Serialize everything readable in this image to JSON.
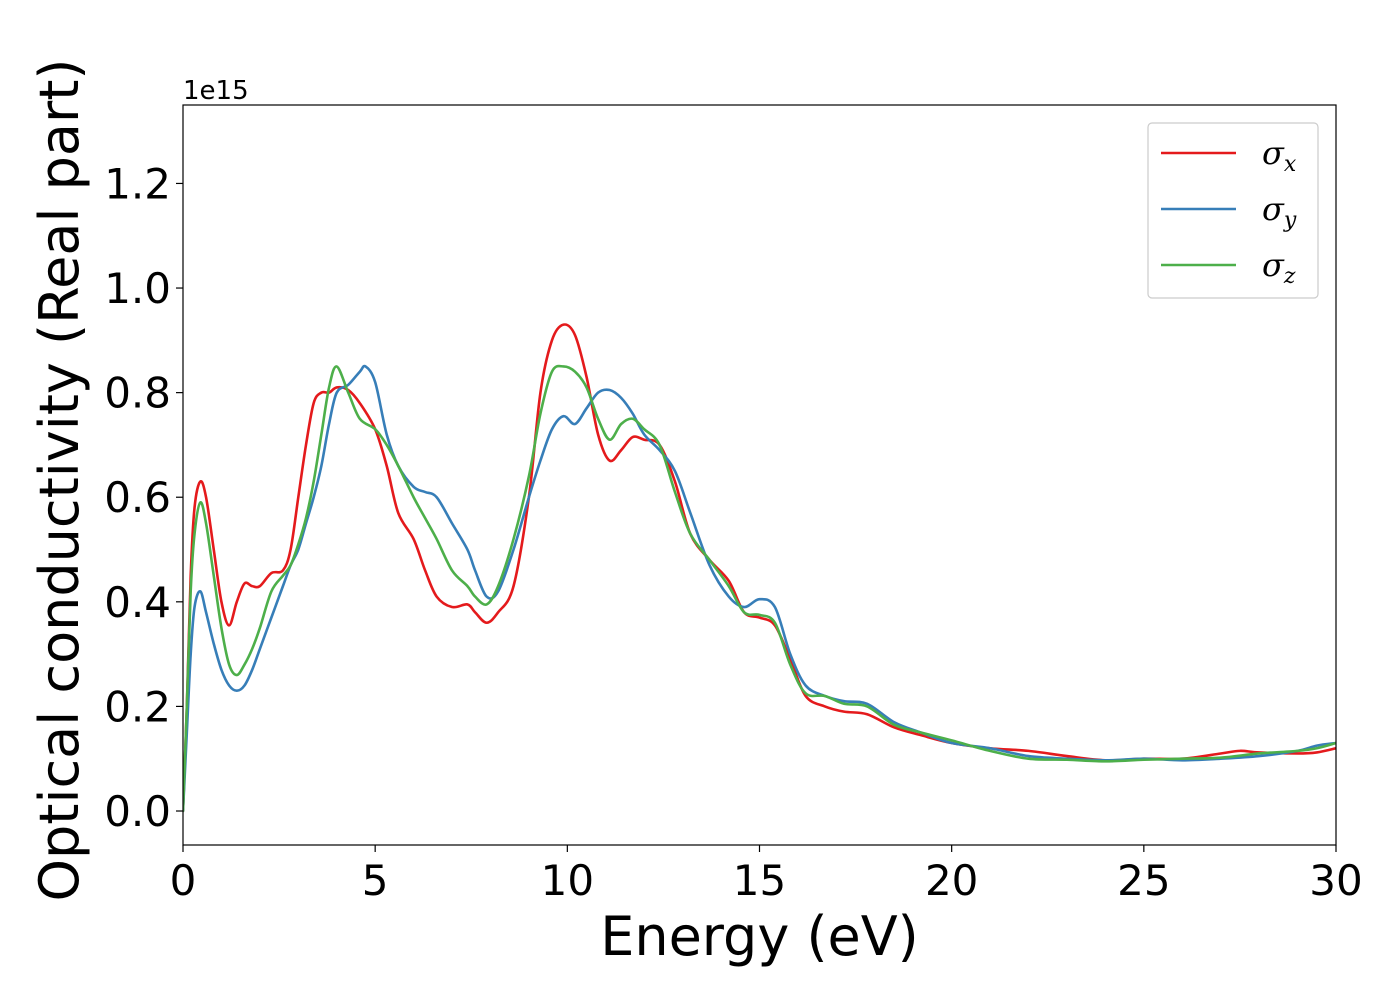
{
  "chart_data": {
    "type": "line",
    "xlabel": "Energy (eV)",
    "ylabel": "Optical conductivity (Real part)",
    "offset_text": "1e15",
    "xlim": [
      0,
      30
    ],
    "ylim": [
      -0.065,
      1.35
    ],
    "xticks": [
      0,
      5,
      10,
      15,
      20,
      25,
      30
    ],
    "yticks": [
      0.0,
      0.2,
      0.4,
      0.6,
      0.8,
      1.0,
      1.2
    ],
    "xtick_labels": [
      "0",
      "5",
      "10",
      "15",
      "20",
      "25",
      "30"
    ],
    "ytick_labels": [
      "0.0",
      "0.2",
      "0.4",
      "0.6",
      "0.8",
      "1.0",
      "1.2"
    ],
    "grid": false,
    "legend_position": "top-right",
    "series": [
      {
        "name": "σ_x",
        "label_main": "σ",
        "label_sub": "x",
        "color": "#e41a1c",
        "x": [
          0,
          0.1,
          0.2,
          0.3,
          0.45,
          0.6,
          0.8,
          1.0,
          1.2,
          1.4,
          1.6,
          1.8,
          2.0,
          2.3,
          2.6,
          2.8,
          3.0,
          3.2,
          3.4,
          3.6,
          3.8,
          4.0,
          4.3,
          4.6,
          5.0,
          5.3,
          5.6,
          6.0,
          6.3,
          6.6,
          7.0,
          7.4,
          7.6,
          7.9,
          8.2,
          8.6,
          9.0,
          9.3,
          9.6,
          9.9,
          10.2,
          10.5,
          10.8,
          11.1,
          11.4,
          11.7,
          12.0,
          12.4,
          12.8,
          13.2,
          13.7,
          14.2,
          14.6,
          15.0,
          15.4,
          15.8,
          16.2,
          16.7,
          17.2,
          17.8,
          18.5,
          19.2,
          20.0,
          21.0,
          22.0,
          23.0,
          24.0,
          25.0,
          26.0,
          27.0,
          27.5,
          28.0,
          29.0,
          29.5,
          30.0
        ],
        "values": [
          0,
          0.2,
          0.45,
          0.58,
          0.63,
          0.6,
          0.5,
          0.4,
          0.355,
          0.4,
          0.435,
          0.43,
          0.43,
          0.455,
          0.46,
          0.5,
          0.6,
          0.7,
          0.78,
          0.8,
          0.8,
          0.81,
          0.805,
          0.78,
          0.73,
          0.66,
          0.57,
          0.52,
          0.46,
          0.41,
          0.39,
          0.395,
          0.38,
          0.36,
          0.38,
          0.43,
          0.6,
          0.8,
          0.9,
          0.93,
          0.91,
          0.83,
          0.72,
          0.67,
          0.69,
          0.715,
          0.71,
          0.7,
          0.63,
          0.53,
          0.48,
          0.44,
          0.38,
          0.37,
          0.355,
          0.29,
          0.22,
          0.2,
          0.19,
          0.185,
          0.16,
          0.145,
          0.13,
          0.12,
          0.115,
          0.105,
          0.097,
          0.1,
          0.1,
          0.11,
          0.115,
          0.112,
          0.11,
          0.112,
          0.12
        ]
      },
      {
        "name": "σ_y",
        "label_main": "σ",
        "label_sub": "y",
        "color": "#377eb8",
        "x": [
          0,
          0.1,
          0.2,
          0.3,
          0.45,
          0.6,
          0.8,
          1.0,
          1.2,
          1.4,
          1.6,
          1.8,
          2.0,
          2.3,
          2.6,
          2.8,
          3.0,
          3.2,
          3.4,
          3.6,
          3.8,
          4.0,
          4.3,
          4.6,
          4.75,
          5.0,
          5.3,
          5.6,
          6.0,
          6.3,
          6.6,
          7.0,
          7.4,
          7.6,
          7.9,
          8.2,
          8.6,
          9.0,
          9.3,
          9.6,
          9.9,
          10.2,
          10.5,
          10.8,
          11.1,
          11.4,
          11.7,
          12.0,
          12.4,
          12.8,
          13.2,
          13.7,
          14.2,
          14.6,
          15.0,
          15.4,
          15.8,
          16.2,
          16.7,
          17.2,
          17.8,
          18.5,
          19.2,
          20.0,
          21.0,
          22.0,
          23.0,
          24.0,
          25.0,
          26.0,
          27.0,
          28.0,
          29.0,
          29.5,
          30.0
        ],
        "values": [
          0,
          0.15,
          0.3,
          0.39,
          0.42,
          0.38,
          0.32,
          0.27,
          0.24,
          0.23,
          0.24,
          0.27,
          0.31,
          0.37,
          0.43,
          0.47,
          0.5,
          0.55,
          0.6,
          0.66,
          0.74,
          0.8,
          0.815,
          0.84,
          0.85,
          0.82,
          0.72,
          0.66,
          0.62,
          0.61,
          0.6,
          0.55,
          0.5,
          0.46,
          0.41,
          0.42,
          0.5,
          0.6,
          0.67,
          0.73,
          0.755,
          0.74,
          0.77,
          0.8,
          0.805,
          0.79,
          0.76,
          0.72,
          0.69,
          0.65,
          0.57,
          0.47,
          0.41,
          0.39,
          0.405,
          0.39,
          0.3,
          0.24,
          0.22,
          0.21,
          0.205,
          0.17,
          0.15,
          0.13,
          0.12,
          0.105,
          0.1,
          0.097,
          0.1,
          0.097,
          0.1,
          0.105,
          0.115,
          0.125,
          0.13
        ]
      },
      {
        "name": "σ_z",
        "label_main": "σ",
        "label_sub": "z",
        "color": "#4daf4a",
        "x": [
          0,
          0.1,
          0.2,
          0.3,
          0.45,
          0.6,
          0.8,
          1.0,
          1.2,
          1.4,
          1.6,
          1.8,
          2.0,
          2.3,
          2.6,
          2.8,
          3.0,
          3.2,
          3.4,
          3.6,
          3.8,
          4.0,
          4.3,
          4.6,
          5.0,
          5.3,
          5.6,
          6.0,
          6.3,
          6.6,
          7.0,
          7.4,
          7.6,
          7.9,
          8.2,
          8.6,
          9.0,
          9.3,
          9.6,
          9.9,
          10.2,
          10.5,
          10.8,
          11.1,
          11.4,
          11.7,
          12.0,
          12.4,
          12.8,
          13.2,
          13.7,
          14.2,
          14.6,
          15.0,
          15.4,
          15.8,
          16.2,
          16.7,
          17.2,
          17.8,
          18.5,
          19.2,
          20.0,
          21.0,
          22.0,
          23.0,
          24.0,
          25.0,
          26.0,
          27.0,
          28.0,
          29.0,
          29.5,
          30.0
        ],
        "values": [
          0,
          0.2,
          0.42,
          0.53,
          0.59,
          0.55,
          0.45,
          0.35,
          0.28,
          0.26,
          0.28,
          0.31,
          0.35,
          0.42,
          0.45,
          0.47,
          0.51,
          0.56,
          0.63,
          0.72,
          0.81,
          0.85,
          0.8,
          0.75,
          0.73,
          0.7,
          0.66,
          0.6,
          0.56,
          0.52,
          0.46,
          0.43,
          0.41,
          0.395,
          0.43,
          0.52,
          0.64,
          0.76,
          0.84,
          0.85,
          0.84,
          0.81,
          0.75,
          0.71,
          0.74,
          0.75,
          0.73,
          0.7,
          0.61,
          0.53,
          0.48,
          0.43,
          0.38,
          0.375,
          0.36,
          0.28,
          0.225,
          0.22,
          0.205,
          0.2,
          0.165,
          0.15,
          0.135,
          0.115,
          0.1,
          0.098,
          0.095,
          0.098,
          0.1,
          0.102,
          0.11,
          0.115,
          0.12,
          0.13
        ]
      }
    ]
  }
}
